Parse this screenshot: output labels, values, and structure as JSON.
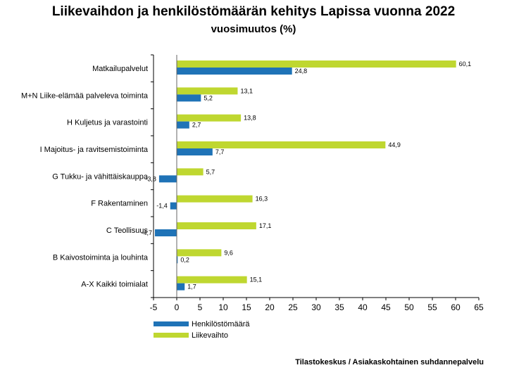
{
  "title": "Liikevaihdon ja henkilöstömäärän kehitys Lapissa vuonna 2022",
  "subtitle": "vuosimuutos (%)",
  "source": "Tilastokeskus / Asiakaskohtainen suhdannepalvelu",
  "chart_data": {
    "type": "bar",
    "orientation": "horizontal",
    "categories": [
      "Matkailupalvelut",
      "M+N Liike-elämää palveleva toiminta",
      "H Kuljetus ja varastointi",
      "I Majoitus- ja ravitsemistoiminta",
      "G Tukku- ja vähittäiskauppa",
      "F Rakentaminen",
      "C Teollisuus",
      "B Kaivostoiminta ja louhinta",
      "A-X Kaikki toimialat"
    ],
    "series": [
      {
        "name": "Liikevaihto",
        "color": "#bfd730",
        "values": [
          60.1,
          13.1,
          13.8,
          44.9,
          5.7,
          16.3,
          17.1,
          9.6,
          15.1
        ],
        "labels": [
          "60,1",
          "13,1",
          "13,8",
          "44,9",
          "5,7",
          "16,3",
          "17,1",
          "9,6",
          "15,1"
        ]
      },
      {
        "name": "Henkilöstömäärä",
        "color": "#1f73b7",
        "values": [
          24.8,
          5.2,
          2.7,
          7.7,
          -3.8,
          -1.4,
          -4.7,
          0.2,
          1.7
        ],
        "labels": [
          "24,8",
          "5,2",
          "2,7",
          "7,7",
          "-3,8",
          "-1,4",
          "-4,7",
          "0,2",
          "1,7"
        ]
      }
    ],
    "xlim": [
      -5,
      65
    ],
    "xticks": [
      -5,
      0,
      5,
      10,
      15,
      20,
      25,
      30,
      35,
      40,
      45,
      50,
      55,
      60,
      65
    ],
    "xtick_labels": [
      "-5",
      "0",
      "5",
      "10",
      "15",
      "20",
      "25",
      "30",
      "35",
      "40",
      "45",
      "50",
      "55",
      "60",
      "65"
    ],
    "legend": {
      "placement": "bottom-left",
      "items": [
        {
          "label": "Henkilöstömäärä",
          "color": "#1f73b7"
        },
        {
          "label": "Liikevaihto",
          "color": "#bfd730"
        }
      ]
    },
    "grid": false
  }
}
